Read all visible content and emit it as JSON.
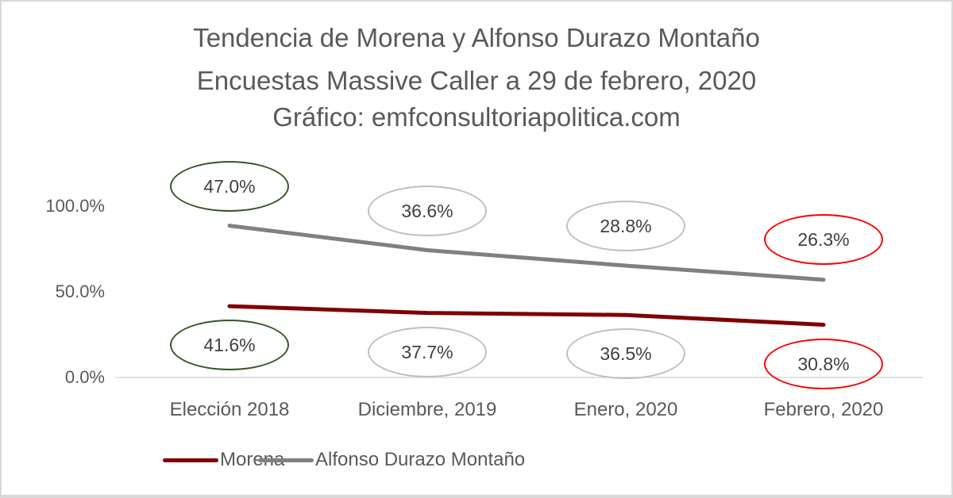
{
  "chart_data": {
    "type": "line",
    "stacked": true,
    "title": [
      "Tendencia de Morena y Alfonso Durazo Montaño",
      "Encuestas Massive Caller a 29 de febrero, 2020",
      "Gráfico: emfconsultoriapolitica.com"
    ],
    "categories": [
      "Elección 2018",
      "Diciembre, 2019",
      "Enero, 2020",
      "Febrero, 2020"
    ],
    "series": [
      {
        "name": "Morena",
        "values": [
          41.6,
          37.7,
          36.5,
          30.8
        ],
        "labels": [
          "41.6%",
          "37.7%",
          "36.5%",
          "30.8%"
        ],
        "color": "#7f0000"
      },
      {
        "name": "Alfonso Durazo Montaño",
        "values": [
          47.0,
          36.6,
          28.8,
          26.3
        ],
        "labels": [
          "47.0%",
          "36.6%",
          "28.8%",
          "26.3%"
        ],
        "color": "#808080"
      }
    ],
    "yticks": [
      "0.0%",
      "50.0%",
      "100.0%"
    ],
    "ylim": [
      0,
      100
    ],
    "xlabel": "",
    "ylabel": "",
    "grid": false,
    "legend_position": "bottom",
    "label_outline_colors": [
      "#375623",
      "#bfbfbf",
      "#bfbfbf",
      "#ff0000"
    ]
  }
}
